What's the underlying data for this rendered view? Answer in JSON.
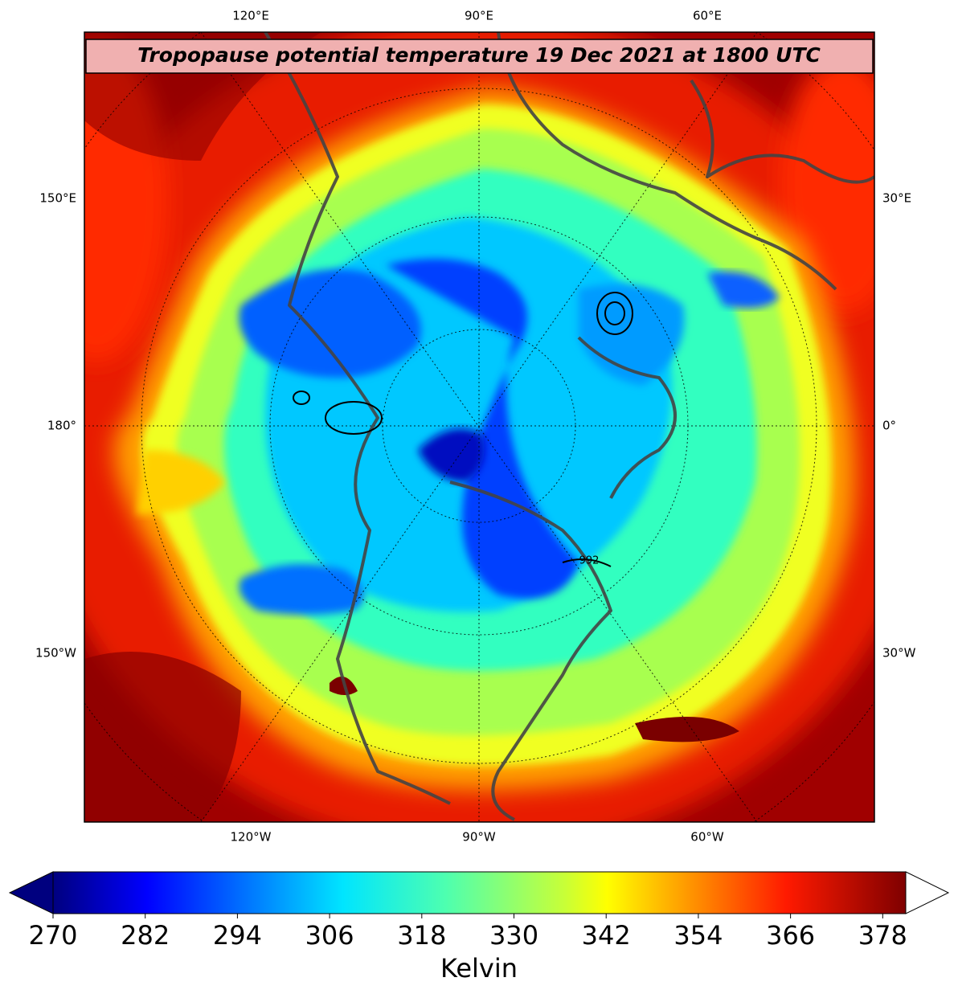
{
  "title": "Tropopause potential temperature 19 Dec 2021 at 1800 UTC",
  "top_labels": [
    "120°E",
    "90°E",
    "60°E"
  ],
  "bottom_labels": [
    "120°W",
    "90°W",
    "60°W"
  ],
  "left_labels": [
    "150°E",
    "180°",
    "150°W"
  ],
  "right_labels": [
    "30°E",
    "0°",
    "30°W"
  ],
  "contour_label": "992",
  "colorbar": {
    "label": "Kelvin",
    "lim": [
      270,
      381
    ],
    "ticks": [
      270,
      282,
      294,
      306,
      318,
      330,
      342,
      354,
      366,
      378
    ]
  }
}
